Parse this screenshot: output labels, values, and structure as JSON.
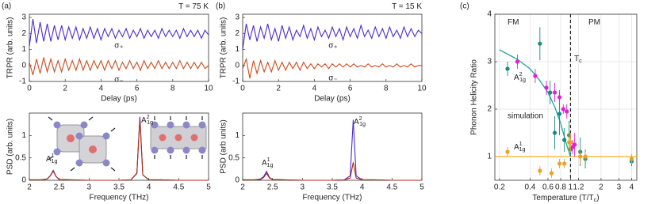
{
  "chart_data": [
    {
      "type": "line",
      "panel": "(a)",
      "xlabel": "Delay (ps)",
      "ylabel": "TRPR (arb. units)",
      "annotations": [
        {
          "base": "T = 75 K",
          "color": "#000000"
        }
      ],
      "x": [
        0,
        0.2,
        0.4,
        0.6,
        0.8,
        1,
        1.2,
        1.4,
        1.6,
        1.8,
        2,
        2.2,
        2.4,
        2.6,
        2.8,
        3,
        3.2,
        3.4,
        3.6,
        3.8,
        4,
        4.2,
        4.4,
        4.6,
        4.8,
        5,
        5.2,
        5.4,
        5.6,
        5.8,
        6,
        6.2,
        6.4,
        6.6,
        6.8,
        7,
        7.2,
        7.4,
        7.6,
        7.8,
        8,
        8.2,
        8.4,
        8.6,
        8.8,
        9,
        9.2,
        9.4,
        9.6,
        9.8,
        10
      ],
      "xlim": [
        0,
        10
      ],
      "xticks": [
        0,
        2,
        4,
        6,
        8,
        10
      ],
      "ylim": [
        -1,
        3.2
      ],
      "yticks": [
        -1,
        0,
        1,
        2,
        3
      ],
      "series": [
        {
          "name": "σ₊",
          "color": "#4a2bd0",
          "values": [
            1.2,
            2.9,
            1.4,
            2.7,
            1.5,
            2.6,
            1.5,
            2.5,
            1.6,
            2.5,
            1.6,
            2.4,
            1.7,
            2.4,
            1.6,
            2.3,
            1.7,
            2.4,
            1.7,
            2.3,
            1.6,
            2.3,
            1.8,
            2.3,
            1.7,
            2.2,
            1.8,
            2.3,
            1.7,
            2.2,
            1.8,
            2.3,
            1.7,
            2.2,
            1.8,
            2.2,
            1.7,
            2.3,
            1.8,
            2.2,
            1.8,
            2.2,
            1.7,
            2.3,
            1.8,
            2.2,
            1.8,
            2.2,
            1.7,
            2.2,
            1.9
          ]
        },
        {
          "name": "σ₋",
          "color": "#cc4a1e",
          "values": [
            0.2,
            -0.6,
            0.4,
            -0.5,
            0.5,
            -0.4,
            0.4,
            -0.4,
            0.3,
            -0.4,
            0.4,
            -0.3,
            0.3,
            -0.3,
            0.4,
            -0.3,
            0.3,
            -0.3,
            0.3,
            -0.2,
            0.3,
            -0.3,
            0.3,
            -0.2,
            0.3,
            -0.3,
            0.2,
            -0.2,
            0.3,
            -0.2,
            0.2,
            -0.3,
            0.3,
            -0.2,
            0.2,
            -0.2,
            0.3,
            -0.2,
            0.2,
            -0.2,
            0.2,
            -0.2,
            0.3,
            -0.2,
            0.2,
            -0.2,
            0.2,
            -0.2,
            0.2,
            -0.2,
            0.0
          ]
        }
      ]
    },
    {
      "type": "line",
      "xlabel": "Frequency (THz)",
      "ylabel": "PSD (arb. units)",
      "annotations": [
        {
          "base": "A",
          "sub": "1g",
          "sup": "1",
          "color": "#000000"
        },
        {
          "base": "A",
          "sub": "1g",
          "sup": "2",
          "color": "#000000"
        }
      ],
      "x": [
        2,
        2.2,
        2.3,
        2.35,
        2.4,
        2.45,
        2.5,
        2.7,
        3.0,
        3.5,
        3.7,
        3.8,
        3.85,
        3.9,
        4.0,
        4.2,
        4.5,
        5
      ],
      "xlim": [
        2,
        5
      ],
      "xticks": [
        2,
        2.5,
        3,
        3.5,
        4,
        4.5,
        5
      ],
      "ylim": [
        0,
        1.5
      ],
      "yticks": [
        0,
        0.5,
        1
      ],
      "series": [
        {
          "color": "#4a2bd0",
          "values": [
            0.01,
            0.01,
            0.03,
            0.1,
            0.22,
            0.08,
            0.02,
            0.01,
            0,
            0,
            0.01,
            0.15,
            1.42,
            0.12,
            0.01,
            0.01,
            0,
            0
          ]
        },
        {
          "color": "#b02a10",
          "values": [
            0.01,
            0.01,
            0.03,
            0.1,
            0.2,
            0.08,
            0.02,
            0.01,
            0,
            0,
            0.01,
            0.16,
            1.38,
            0.12,
            0.01,
            0.01,
            0,
            0
          ]
        }
      ]
    },
    {
      "type": "line",
      "panel": "(b)",
      "xlabel": "Delay (ps)",
      "ylabel": "TRPR (arb. units)",
      "annotations": [
        {
          "base": "T = 15 K",
          "color": "#000000"
        }
      ],
      "x": [
        0,
        0.2,
        0.4,
        0.6,
        0.8,
        1,
        1.2,
        1.4,
        1.6,
        1.8,
        2,
        2.2,
        2.4,
        2.6,
        2.8,
        3,
        3.2,
        3.4,
        3.6,
        3.8,
        4,
        4.2,
        4.4,
        4.6,
        4.8,
        5,
        5.2,
        5.4,
        5.6,
        5.8,
        6,
        6.2,
        6.4,
        6.6,
        6.8,
        7,
        7.2,
        7.4,
        7.6,
        7.8,
        8,
        8.2,
        8.4,
        8.6,
        8.8,
        9,
        9.2,
        9.4,
        9.6,
        9.8,
        10
      ],
      "xlim": [
        0,
        10
      ],
      "xticks": [
        0,
        2,
        4,
        6,
        8,
        10
      ],
      "ylim": [
        -1,
        3.2
      ],
      "yticks": [
        -1,
        0,
        1,
        2,
        3
      ],
      "series": [
        {
          "name": "σ₊",
          "color": "#4a2bd0",
          "values": [
            1.0,
            2.6,
            1.6,
            2.5,
            1.5,
            2.4,
            1.7,
            2.6,
            1.6,
            2.3,
            1.5,
            2.5,
            1.7,
            2.4,
            1.6,
            2.2,
            1.8,
            2.5,
            1.7,
            2.3,
            1.6,
            2.4,
            1.8,
            2.2,
            1.7,
            2.4,
            1.8,
            2.3,
            1.6,
            2.4,
            1.8,
            2.3,
            1.7,
            2.5,
            1.8,
            2.2,
            1.7,
            2.4,
            1.8,
            2.3,
            1.7,
            2.4,
            1.8,
            2.2,
            1.7,
            2.4,
            1.8,
            2.3,
            1.8,
            2.2,
            2.0
          ]
        },
        {
          "name": "σ₋",
          "color": "#cc4a1e",
          "values": [
            -0.2,
            0.4,
            -0.8,
            0.3,
            -0.5,
            0.3,
            -0.4,
            0.2,
            -0.4,
            0.3,
            -0.3,
            0.2,
            -0.3,
            0.2,
            -0.2,
            0.2,
            -0.3,
            0.2,
            -0.2,
            0.1,
            -0.2,
            0.1,
            -0.1,
            0.1,
            -0.2,
            0.1,
            -0.1,
            0.1,
            -0.1,
            0.1,
            -0.1,
            0.1,
            -0.1,
            0.0,
            -0.1,
            0.1,
            -0.1,
            0.0,
            -0.1,
            0.1,
            -0.1,
            0.0,
            -0.1,
            0.1,
            -0.1,
            0.0,
            -0.1,
            0.1,
            -0.1,
            0.0,
            0.0
          ]
        }
      ]
    },
    {
      "type": "line",
      "xlabel": "Frequency (THz)",
      "ylabel": "PSD (arb units)",
      "annotations": [
        {
          "base": "A",
          "sub": "1g",
          "sup": "1",
          "color": "#000000"
        },
        {
          "base": "A",
          "sub": "1g",
          "sup": "2",
          "color": "#000000"
        }
      ],
      "x": [
        2,
        2.2,
        2.3,
        2.35,
        2.4,
        2.45,
        2.5,
        2.7,
        3.0,
        3.5,
        3.7,
        3.8,
        3.85,
        3.9,
        4.0,
        4.2,
        4.5,
        5
      ],
      "xlim": [
        2,
        5
      ],
      "xticks": [
        2,
        2.5,
        3,
        3.5,
        4,
        4.5,
        5
      ],
      "ylim": [
        0,
        1.5
      ],
      "yticks": [
        0,
        0.5,
        1
      ],
      "series": [
        {
          "color": "#4a2bd0",
          "values": [
            0.01,
            0.01,
            0.03,
            0.08,
            0.2,
            0.06,
            0.02,
            0.01,
            0,
            0,
            0.01,
            0.1,
            1.35,
            0.1,
            0.01,
            0.01,
            0,
            0
          ]
        },
        {
          "color": "#b02a10",
          "values": [
            0.01,
            0.01,
            0.02,
            0.06,
            0.15,
            0.05,
            0.02,
            0.01,
            0,
            0,
            0.01,
            0.05,
            0.4,
            0.05,
            0.01,
            0.01,
            0,
            0
          ]
        }
      ]
    },
    {
      "type": "scatter",
      "panel": "(c)",
      "xlabel": {
        "base": "Temperature (T/T",
        "sub": "c",
        "tail": ")"
      },
      "ylabel": "Phonon Helicity Ratio",
      "xscale": "log",
      "grid": true,
      "xlim": [
        0.18,
        4.5
      ],
      "xticks": [
        0.2,
        0.4,
        0.6,
        0.8,
        1,
        1.2,
        2,
        3,
        4
      ],
      "ylim": [
        0.5,
        4
      ],
      "yticks": [
        1,
        2,
        3,
        4
      ],
      "annotations": [
        {
          "base": "FM",
          "color": "#3cc0e0"
        },
        {
          "base": "PM",
          "color": "#d03020"
        },
        {
          "base": "T",
          "sub": "c",
          "color": "#000000"
        }
      ],
      "series": [
        {
          "name": {
            "base": "A",
            "sub": "1g",
            "sup": "2"
          },
          "color": "#1a8a80",
          "x": [
            0.24,
            0.5,
            0.63,
            0.7,
            0.78,
            0.87,
            0.97,
            1.0,
            1.25,
            1.4,
            4.0
          ],
          "values": [
            2.85,
            3.38,
            2.35,
            1.5,
            1.9,
            1.35,
            1.45,
            1.15,
            1.1,
            0.95,
            0.9
          ],
          "errors": [
            0.15,
            0.35,
            0.25,
            0.35,
            0.45,
            0.25,
            0.3,
            0.15,
            0.3,
            0.2,
            0.1
          ]
        },
        {
          "name": "simulation",
          "color": "#e020d8",
          "x": [
            0.3,
            0.45,
            0.58,
            0.7,
            0.78,
            0.85,
            0.92,
            1.05,
            1.1
          ],
          "values": [
            3.0,
            2.7,
            2.45,
            2.35,
            2.25,
            2.0,
            1.95,
            1.2,
            1.25
          ],
          "errors": [
            0.15,
            0.15,
            0.15,
            0.2,
            0.15,
            0.1,
            0.15,
            0.15,
            0.25
          ]
        },
        {
          "name": {
            "base": "A",
            "sub": "1g",
            "sup": "1"
          },
          "color": "#f0a020",
          "x": [
            0.24,
            0.5,
            0.65,
            0.78,
            0.87,
            0.97,
            1.0,
            1.25,
            1.4,
            4.0
          ],
          "values": [
            1.1,
            0.7,
            0.65,
            0.85,
            0.85,
            1.3,
            1.3,
            1.0,
            1.0,
            0.95
          ],
          "errors": [
            0.1,
            0.1,
            0.1,
            0.1,
            0.1,
            0.2,
            0.2,
            0.15,
            0.1,
            0.1
          ]
        }
      ],
      "fit": {
        "color": "#14a89b",
        "x": [
          0.2,
          0.3,
          0.4,
          0.5,
          0.6,
          0.7,
          0.8,
          0.9,
          1.0
        ],
        "values": [
          3.25,
          3.05,
          2.85,
          2.6,
          2.35,
          2.05,
          1.7,
          1.3,
          1.0
        ]
      },
      "hline": {
        "value": 1,
        "color": "#f0b020"
      },
      "vline": {
        "value": 1,
        "color": "#000000"
      }
    }
  ]
}
